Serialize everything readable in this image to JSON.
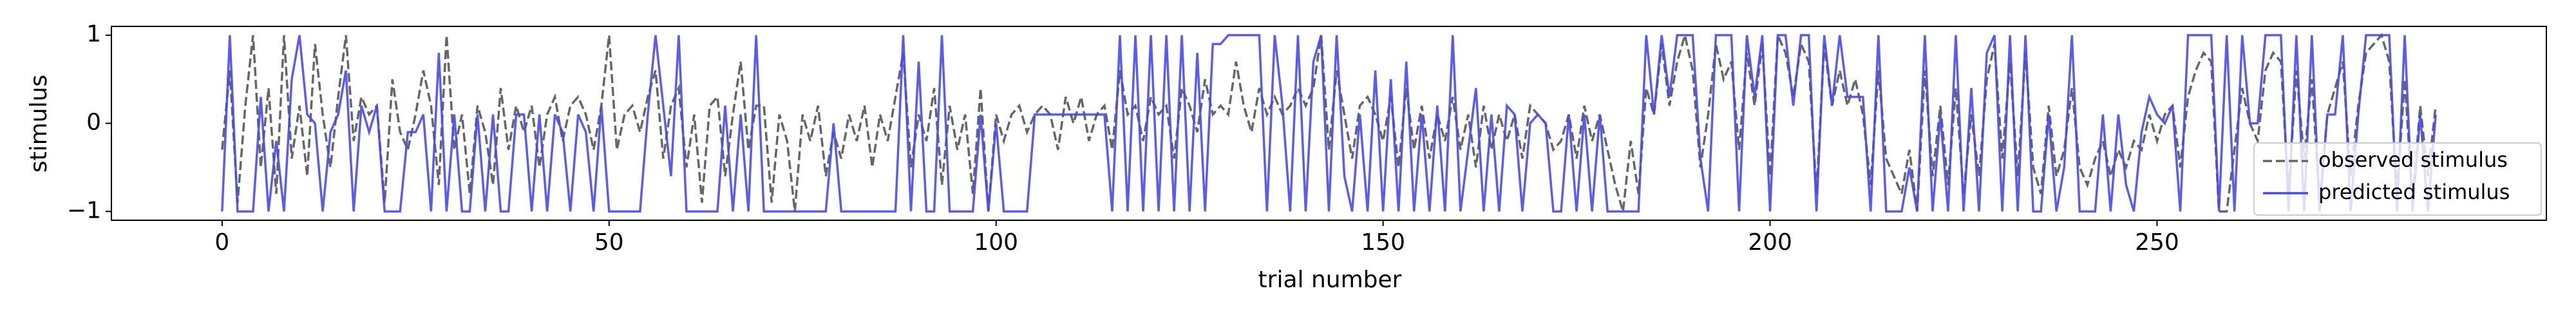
{
  "chart_data": {
    "type": "line",
    "xlabel": "trial number",
    "ylabel": "stimulus",
    "x": [
      0,
      1,
      2,
      3,
      4,
      5,
      6,
      7,
      8,
      9,
      10,
      11,
      12,
      13,
      14,
      15,
      16,
      17,
      18,
      19,
      20,
      21,
      22,
      23,
      24,
      25,
      26,
      27,
      28,
      29,
      30,
      31,
      32,
      33,
      34,
      35,
      36,
      37,
      38,
      39,
      40,
      41,
      42,
      43,
      44,
      45,
      46,
      47,
      48,
      49,
      50,
      51,
      52,
      53,
      54,
      55,
      56,
      57,
      58,
      59,
      60,
      61,
      62,
      63,
      64,
      65,
      66,
      67,
      68,
      69,
      70,
      71,
      72,
      73,
      74,
      75,
      76,
      77,
      78,
      79,
      80,
      81,
      82,
      83,
      84,
      85,
      86,
      87,
      88,
      89,
      90,
      91,
      92,
      93,
      94,
      95,
      96,
      97,
      98,
      99,
      100,
      101,
      102,
      103,
      104,
      105,
      106,
      107,
      108,
      109,
      110,
      111,
      112,
      113,
      114,
      115,
      116,
      117,
      118,
      119,
      120,
      121,
      122,
      123,
      124,
      125,
      126,
      127,
      128,
      129,
      130,
      131,
      132,
      133,
      134,
      135,
      136,
      137,
      138,
      139,
      140,
      141,
      142,
      143,
      144,
      145,
      146,
      147,
      148,
      149,
      150,
      151,
      152,
      153,
      154,
      155,
      156,
      157,
      158,
      159,
      160,
      161,
      162,
      163,
      164,
      165,
      166,
      167,
      168,
      169,
      170,
      171,
      172,
      173,
      174,
      175,
      176,
      177,
      178,
      179,
      180,
      181,
      182,
      183,
      184,
      185,
      186,
      187,
      188,
      189,
      190,
      191,
      192,
      193,
      194,
      195,
      196,
      197,
      198,
      199,
      200,
      201,
      202,
      203,
      204,
      205,
      206,
      207,
      208,
      209,
      210,
      211,
      212,
      213,
      214,
      215,
      216,
      217,
      218,
      219,
      220,
      221,
      222,
      223,
      224,
      225,
      226,
      227,
      228,
      229,
      230,
      231,
      232,
      233,
      234,
      235,
      236,
      237,
      238,
      239,
      240,
      241,
      242,
      243,
      244,
      245,
      246,
      247,
      248,
      249,
      250,
      251,
      252,
      253,
      254,
      255,
      256,
      257,
      258,
      259,
      260,
      261,
      262,
      263,
      264,
      265,
      266,
      267,
      268,
      269,
      270,
      271,
      272,
      273,
      274,
      275,
      276,
      277,
      278,
      279,
      280,
      281,
      282,
      283,
      284,
      285,
      286
    ],
    "series": [
      {
        "name": "observed stimulus",
        "color": "#666666",
        "linestyle": "dashed",
        "values": [
          -0.3,
          0.6,
          -0.9,
          0.2,
          1,
          -0.5,
          0.4,
          -0.8,
          1,
          -0.4,
          0.2,
          -0.6,
          0.9,
          0.1,
          -0.5,
          0.3,
          1,
          -0.2,
          0.3,
          0.1,
          0.2,
          -0.9,
          0.5,
          -0.1,
          -0.3,
          0.1,
          0.6,
          0.2,
          -0.7,
          1,
          -0.3,
          0.1,
          -0.8,
          0.2,
          -0.1,
          -0.7,
          0.4,
          -0.3,
          0.2,
          -0.1,
          0.2,
          -0.5,
          0.1,
          0.3,
          -0.2,
          0.2,
          0.3,
          0.1,
          -0.3,
          0.2,
          1,
          -0.3,
          0.1,
          0.2,
          -0.1,
          0.3,
          0.6,
          -0.4,
          0.2,
          0.4,
          -0.5,
          0.1,
          -0.9,
          0.2,
          0.3,
          -0.6,
          0.1,
          0.7,
          -0.3,
          0.2,
          0.2,
          -0.9,
          0.1,
          -0.2,
          -1,
          0.1,
          -0.2,
          0.2,
          -0.6,
          -0.1,
          -0.4,
          0.1,
          -0.2,
          0.2,
          -0.5,
          0.1,
          -0.2,
          0.3,
          0.8,
          -0.5,
          0.1,
          -0.2,
          0.4,
          -0.7,
          0.2,
          -0.3,
          0.1,
          -0.8,
          0.4,
          -1,
          0.1,
          -0.2,
          0.1,
          0.2,
          -0.1,
          0.1,
          0.2,
          0.1,
          -0.3,
          0.3,
          0,
          0.3,
          -0.2,
          0.1,
          0.2,
          -0.3,
          0.6,
          0.1,
          0.2,
          -0.2,
          0.3,
          0.1,
          0.2,
          -0.4,
          0.4,
          0.2,
          -0.1,
          0.5,
          0.1,
          0.2,
          0.1,
          0.7,
          0.2,
          -0.1,
          0.4,
          0.1,
          0.3,
          0.1,
          0.2,
          0.4,
          0.2,
          0.4,
          1,
          -0.3,
          0.6,
          0.1,
          -0.4,
          0.2,
          0.3,
          0.1,
          -0.2,
          0.3,
          -0.5,
          0.4,
          -0.3,
          0.2,
          -0.4,
          0.1,
          -0.2,
          0.3,
          -0.3,
          0.1,
          -0.5,
          0.2,
          -0.3,
          0.1,
          -0.2,
          0.1,
          -0.4,
          0.2,
          0.1,
          0,
          -0.3,
          -0.2,
          0.1,
          -0.4,
          0.2,
          -0.2,
          0.1,
          -0.3,
          -0.7,
          -1,
          -0.2,
          -0.8,
          0.4,
          0.1,
          0.9,
          0.2,
          0.7,
          1,
          0.6,
          -0.5,
          0.1,
          0.9,
          0.5,
          0.7,
          -0.3,
          0.8,
          0.2,
          0.9,
          -0.6,
          1,
          0.8,
          0.3,
          0.9,
          0.7,
          -0.8,
          0.9,
          0.2,
          0.6,
          0.2,
          0.5,
          0.1,
          -0.7,
          0.6,
          -0.4,
          -0.6,
          -0.8,
          -0.3,
          -1,
          0.6,
          -0.6,
          0.2,
          -0.7,
          0.4,
          -0.8,
          0.1,
          -0.6,
          0.5,
          0.9,
          -0.4,
          0.7,
          -0.6,
          0.8,
          -0.5,
          -0.8,
          0.2,
          -0.6,
          -0.3,
          0.4,
          -0.5,
          -0.7,
          -0.4,
          -0.2,
          -0.6,
          -0.3,
          -0.5,
          -0.2,
          -0.3,
          0.1,
          -0.2,
          0.1,
          0.2,
          -0.5,
          0.3,
          0.6,
          0.8,
          0.7,
          -1,
          -1,
          -0.3,
          0.4,
          0,
          -0.2,
          0.6,
          0.8,
          0.7,
          -0.8,
          0.6,
          -0.4,
          0.5,
          -0.9,
          0.1,
          0.4,
          0.7,
          -0.6,
          0.2,
          0.8,
          0.9,
          1,
          0.7,
          -0.8,
          0.5,
          -0.9,
          0.2,
          -0.6,
          0.2
        ]
      },
      {
        "name": "predicted stimulus",
        "color": "#4a4ae8",
        "linestyle": "solid",
        "values": [
          -1,
          1,
          -1,
          -1,
          -1,
          0.3,
          -1,
          -0.2,
          -1,
          0.5,
          1,
          0.1,
          0,
          -1,
          -0.1,
          0.1,
          0.6,
          -1,
          0.2,
          -0.1,
          0.2,
          -1,
          -1,
          -1,
          -0.1,
          -0.1,
          0.1,
          -1,
          0.8,
          -1,
          0.1,
          -1,
          -1,
          0.1,
          -1,
          0.1,
          -1,
          -1,
          0.1,
          0.1,
          -1,
          0.1,
          -1,
          0.1,
          -0.1,
          -1,
          0.1,
          -0.1,
          -1,
          0.2,
          -1,
          -1,
          -1,
          -1,
          -1,
          0.1,
          1,
          0.2,
          -0.6,
          1,
          -1,
          -1,
          -1,
          -1,
          -1,
          0.2,
          -1,
          0.1,
          -1,
          1,
          -1,
          -1,
          -1,
          -1,
          -1,
          -1,
          -1,
          -1,
          -1,
          0,
          -1,
          -1,
          -1,
          -1,
          -1,
          -1,
          -1,
          -1,
          1,
          -1,
          0.7,
          -1,
          -1,
          1,
          -1,
          -1,
          -1,
          -1,
          0.1,
          -1,
          0,
          -1,
          -1,
          -1,
          -1,
          0.1,
          0.1,
          0.1,
          0.1,
          0.1,
          0.1,
          0.1,
          0.1,
          0.1,
          0.1,
          -1,
          1,
          -1,
          1,
          -1,
          1,
          -1,
          1,
          -1,
          1,
          -1,
          0.8,
          -1,
          0.9,
          0.9,
          1,
          1,
          1,
          1,
          1,
          -1,
          1,
          0.2,
          -1,
          1,
          -1,
          0.7,
          1,
          -1,
          1,
          -0.6,
          -1,
          0.1,
          -1,
          0.6,
          -1,
          0.5,
          -1,
          0.7,
          -1,
          0.1,
          -1,
          0.2,
          -1,
          1,
          -1,
          -0.3,
          0.4,
          -1,
          0.1,
          -1,
          0.2,
          0.1,
          -1,
          0,
          0.1,
          0,
          -1,
          -1,
          0.1,
          -1,
          0.1,
          -1,
          0.1,
          -1,
          -1,
          -1,
          -1,
          -1,
          1,
          0.1,
          1,
          0.3,
          1,
          1,
          1,
          -0.4,
          -1,
          1,
          1,
          1,
          -1,
          1,
          0.3,
          1,
          -1,
          1,
          1,
          0.2,
          1,
          1,
          -1,
          1,
          0.2,
          1,
          0.3,
          0.3,
          0.3,
          -1,
          1,
          -1,
          -1,
          -1,
          -0.5,
          -1,
          1,
          -1,
          0.1,
          -1,
          1,
          -1,
          0.4,
          -1,
          0.8,
          1,
          -1,
          1,
          -1,
          1,
          -1,
          -1,
          0.1,
          -1,
          -0.5,
          1,
          -1,
          -1,
          -1,
          0.1,
          -1,
          0.1,
          -0.7,
          -1,
          -0.1,
          0.3,
          0.1,
          0,
          0.2,
          -1,
          1,
          1,
          1,
          1,
          -1,
          1,
          -1,
          1,
          0,
          0,
          1,
          1,
          1,
          -1,
          1,
          -1,
          1,
          -1,
          0.1,
          0.1,
          1,
          -1,
          0.1,
          1,
          1,
          1,
          1,
          -1,
          1,
          -1,
          0.1,
          -1,
          0.1
        ]
      }
    ],
    "xlim": [
      -14.3,
      300.3
    ],
    "xticks": [
      0,
      50,
      100,
      150,
      200,
      250
    ],
    "ylim": [
      -1.1,
      1.1
    ],
    "yticks": [
      {
        "value": -1,
        "label": "−1"
      },
      0,
      1
    ],
    "grid": false,
    "legend": "lower right"
  }
}
